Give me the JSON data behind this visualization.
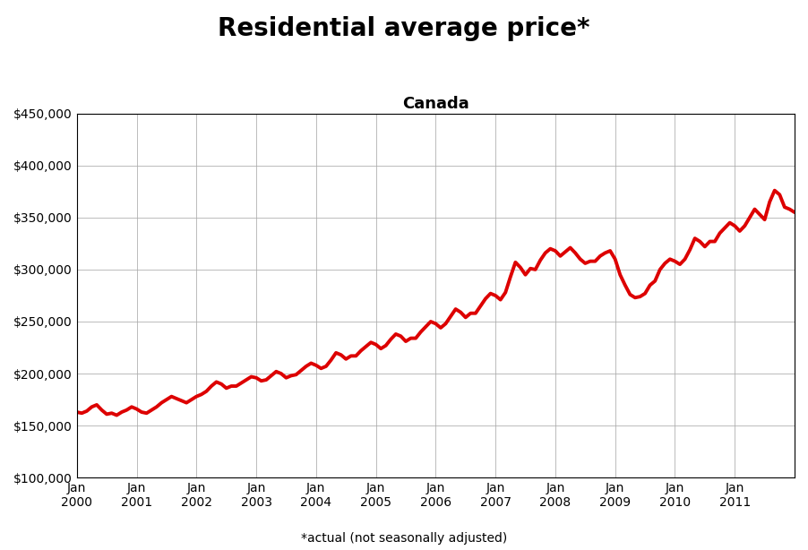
{
  "title": "Residential average price*",
  "subtitle": "Canada",
  "footnote": "*actual (not seasonally adjusted)",
  "line_color": "#dd0000",
  "line_width": 2.8,
  "background_color": "#ffffff",
  "grid_color": "#aaaaaa",
  "ylim": [
    100000,
    450000
  ],
  "yticks": [
    100000,
    150000,
    200000,
    250000,
    300000,
    350000,
    400000,
    450000
  ],
  "xtick_labels": [
    "Jan\n2000",
    "Jan\n2001",
    "Jan\n2002",
    "Jan\n2003",
    "Jan\n2004",
    "Jan\n2005",
    "Jan\n2006",
    "Jan\n2007",
    "Jan\n2008",
    "Jan\n2009",
    "Jan\n2010",
    "Jan\n2011"
  ],
  "xtick_positions": [
    0,
    12,
    24,
    36,
    48,
    60,
    72,
    84,
    96,
    108,
    120,
    132
  ],
  "title_fontsize": 20,
  "subtitle_fontsize": 13,
  "footnote_fontsize": 10,
  "tick_fontsize": 10,
  "prices": [
    163000,
    162000,
    164000,
    168000,
    170000,
    165000,
    161000,
    162000,
    160000,
    163000,
    165000,
    168000,
    166000,
    163000,
    162000,
    165000,
    168000,
    172000,
    175000,
    178000,
    176000,
    174000,
    172000,
    175000,
    178000,
    180000,
    183000,
    188000,
    192000,
    190000,
    186000,
    188000,
    188000,
    191000,
    194000,
    197000,
    196000,
    193000,
    194000,
    198000,
    202000,
    200000,
    196000,
    198000,
    199000,
    203000,
    207000,
    210000,
    208000,
    205000,
    207000,
    213000,
    220000,
    218000,
    214000,
    217000,
    217000,
    222000,
    226000,
    230000,
    228000,
    224000,
    227000,
    233000,
    238000,
    236000,
    231000,
    234000,
    234000,
    240000,
    245000,
    250000,
    248000,
    244000,
    248000,
    255000,
    262000,
    259000,
    254000,
    258000,
    258000,
    265000,
    272000,
    277000,
    275000,
    271000,
    278000,
    293000,
    307000,
    302000,
    295000,
    301000,
    300000,
    309000,
    316000,
    320000,
    318000,
    313000,
    317000,
    321000,
    316000,
    310000,
    306000,
    308000,
    308000,
    313000,
    316000,
    318000,
    310000,
    295000,
    285000,
    276000,
    273000,
    274000,
    277000,
    285000,
    289000,
    300000,
    306000,
    310000,
    308000,
    305000,
    310000,
    319000,
    330000,
    327000,
    322000,
    327000,
    327000,
    335000,
    340000,
    345000,
    342000,
    337000,
    342000,
    350000,
    358000,
    353000,
    348000,
    365000,
    376000,
    372000,
    360000,
    358000,
    355000
  ]
}
